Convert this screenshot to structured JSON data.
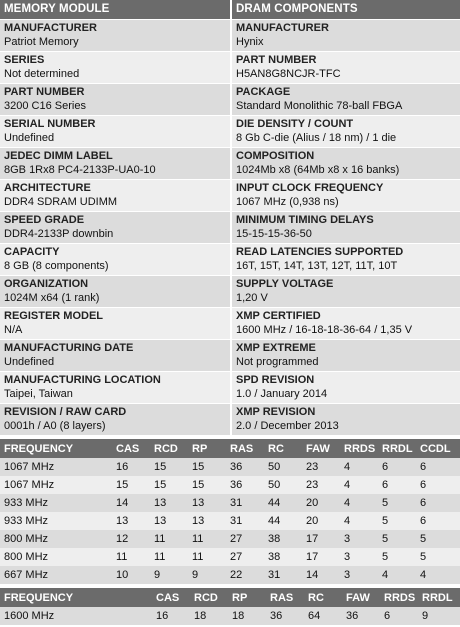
{
  "memory_module": {
    "title": "MEMORY MODULE",
    "fields": [
      {
        "label": "MANUFACTURER",
        "value": "Patriot Memory"
      },
      {
        "label": "SERIES",
        "value": "Not determined"
      },
      {
        "label": "PART NUMBER",
        "value": "3200 C16 Series"
      },
      {
        "label": "SERIAL NUMBER",
        "value": "Undefined"
      },
      {
        "label": "JEDEC DIMM LABEL",
        "value": "8GB 1Rx8 PC4-2133P-UA0-10"
      },
      {
        "label": "ARCHITECTURE",
        "value": "DDR4 SDRAM UDIMM"
      },
      {
        "label": "SPEED GRADE",
        "value": "DDR4-2133P downbin"
      },
      {
        "label": "CAPACITY",
        "value": "8 GB (8 components)"
      },
      {
        "label": "ORGANIZATION",
        "value": "1024M x64 (1 rank)"
      },
      {
        "label": "REGISTER MODEL",
        "value": "N/A"
      },
      {
        "label": "MANUFACTURING DATE",
        "value": "Undefined"
      },
      {
        "label": "MANUFACTURING LOCATION",
        "value": "Taipei, Taiwan"
      },
      {
        "label": "REVISION / RAW CARD",
        "value": "0001h / A0 (8 layers)"
      }
    ]
  },
  "dram_components": {
    "title": "DRAM COMPONENTS",
    "fields": [
      {
        "label": "MANUFACTURER",
        "value": "Hynix"
      },
      {
        "label": "PART NUMBER",
        "value": "H5AN8G8NCJR-TFC"
      },
      {
        "label": "PACKAGE",
        "value": "Standard Monolithic 78-ball FBGA"
      },
      {
        "label": "DIE DENSITY / COUNT",
        "value": "8 Gb C-die (Alius / 18 nm) / 1 die"
      },
      {
        "label": "COMPOSITION",
        "value": "1024Mb x8 (64Mb x8 x 16 banks)"
      },
      {
        "label": "INPUT CLOCK FREQUENCY",
        "value": "1067 MHz (0,938 ns)"
      },
      {
        "label": "MINIMUM TIMING DELAYS",
        "value": "15-15-15-36-50"
      },
      {
        "label": "READ LATENCIES SUPPORTED",
        "value": "16T, 15T, 14T, 13T, 12T, 11T, 10T"
      },
      {
        "label": "SUPPLY VOLTAGE",
        "value": "1,20 V"
      },
      {
        "label": "XMP CERTIFIED",
        "value": "1600 MHz / 16-18-18-36-64 / 1,35 V"
      },
      {
        "label": "XMP EXTREME",
        "value": "Not programmed"
      },
      {
        "label": "SPD REVISION",
        "value": "1.0 / January 2014"
      },
      {
        "label": "XMP REVISION",
        "value": "2.0 / December 2013"
      }
    ]
  },
  "jedec_timings": {
    "headers": [
      "FREQUENCY",
      "CAS",
      "RCD",
      "RP",
      "RAS",
      "RC",
      "FAW",
      "RRDS",
      "RRDL",
      "CCDL"
    ],
    "rows": [
      [
        "1067 MHz",
        "16",
        "15",
        "15",
        "36",
        "50",
        "23",
        "4",
        "6",
        "6"
      ],
      [
        "1067 MHz",
        "15",
        "15",
        "15",
        "36",
        "50",
        "23",
        "4",
        "6",
        "6"
      ],
      [
        "933 MHz",
        "14",
        "13",
        "13",
        "31",
        "44",
        "20",
        "4",
        "5",
        "6"
      ],
      [
        "933 MHz",
        "13",
        "13",
        "13",
        "31",
        "44",
        "20",
        "4",
        "5",
        "6"
      ],
      [
        "800 MHz",
        "12",
        "11",
        "11",
        "27",
        "38",
        "17",
        "3",
        "5",
        "5"
      ],
      [
        "800 MHz",
        "11",
        "11",
        "11",
        "27",
        "38",
        "17",
        "3",
        "5",
        "5"
      ],
      [
        "667 MHz",
        "10",
        "9",
        "9",
        "22",
        "31",
        "14",
        "3",
        "4",
        "4"
      ]
    ]
  },
  "xmp_timings": {
    "headers": [
      "FREQUENCY",
      "CAS",
      "RCD",
      "RP",
      "RAS",
      "RC",
      "FAW",
      "RRDS",
      "RRDL"
    ],
    "rows": [
      [
        "1600 MHz",
        "16",
        "18",
        "18",
        "36",
        "64",
        "36",
        "6",
        "9"
      ]
    ]
  },
  "colors": {
    "header_bg": "#6b6b6b",
    "row_dark": "#dcdcdc",
    "row_light": "#eeeeee"
  }
}
